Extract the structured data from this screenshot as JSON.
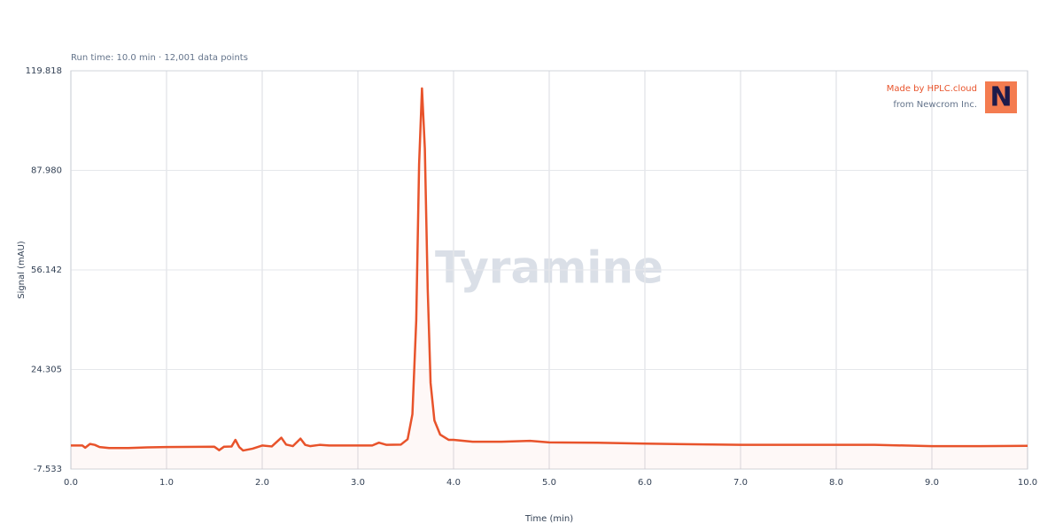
{
  "chart_data": {
    "type": "line",
    "subtitle": "Run time: 10.0 min · 12,001 data points",
    "xlabel": "Time (min)",
    "ylabel": "Signal (mAU)",
    "watermark": "Tyramine",
    "brand": {
      "line1": "Made by HPLC.cloud",
      "line2": "from Newcrom Inc.",
      "logo": "N"
    },
    "color": "#e8532b",
    "grid": true,
    "xlim": [
      0,
      10
    ],
    "xticks": [
      {
        "value": 0,
        "label": "0.0"
      },
      {
        "value": 1,
        "label": "1.0"
      },
      {
        "value": 2,
        "label": "2.0"
      },
      {
        "value": 3,
        "label": "3.0"
      },
      {
        "value": 4,
        "label": "4.0"
      },
      {
        "value": 5,
        "label": "5.0"
      },
      {
        "value": 6,
        "label": "6.0"
      },
      {
        "value": 7,
        "label": "7.0"
      },
      {
        "value": 8,
        "label": "8.0"
      },
      {
        "value": 9,
        "label": "9.0"
      },
      {
        "value": 10,
        "label": "10.0"
      }
    ],
    "ylim": [
      -7.533,
      119.818
    ],
    "yticks": [
      -7.533,
      24.305,
      56.142,
      {
        "value": 87.98,
        "label": "87.980"
      },
      119.818
    ],
    "x": [
      0,
      0.12,
      0.15,
      0.2,
      0.25,
      0.3,
      0.4,
      0.6,
      0.8,
      1.0,
      1.5,
      1.55,
      1.6,
      1.68,
      1.72,
      1.76,
      1.8,
      1.9,
      2.0,
      2.1,
      2.2,
      2.25,
      2.32,
      2.4,
      2.45,
      2.5,
      2.6,
      2.7,
      3.0,
      3.15,
      3.22,
      3.3,
      3.45,
      3.52,
      3.57,
      3.61,
      3.64,
      3.67,
      3.7,
      3.73,
      3.76,
      3.8,
      3.86,
      3.95,
      4.0,
      4.2,
      4.5,
      4.8,
      5.0,
      5.5,
      6.0,
      6.5,
      7.0,
      7.7,
      8.0,
      8.4,
      9.0,
      9.5,
      10.0
    ],
    "values": [
      0,
      0,
      -0.7,
      0.5,
      0.2,
      -0.5,
      -0.8,
      -0.8,
      -0.6,
      -0.5,
      -0.4,
      -1.5,
      -0.4,
      -0.3,
      1.8,
      -0.5,
      -1.6,
      -1.0,
      0,
      -0.3,
      2.5,
      0.3,
      -0.2,
      2.2,
      0.2,
      -0.2,
      0.2,
      0,
      0,
      0,
      0.9,
      0.2,
      0.3,
      2,
      10,
      40,
      90,
      114.2,
      95,
      50,
      20,
      8,
      3.5,
      1.8,
      1.8,
      1.2,
      1.2,
      1.5,
      1.0,
      0.9,
      0.6,
      0.4,
      0.2,
      0.2,
      0.2,
      0.2,
      -0.2,
      -0.2,
      -0.1
    ]
  }
}
